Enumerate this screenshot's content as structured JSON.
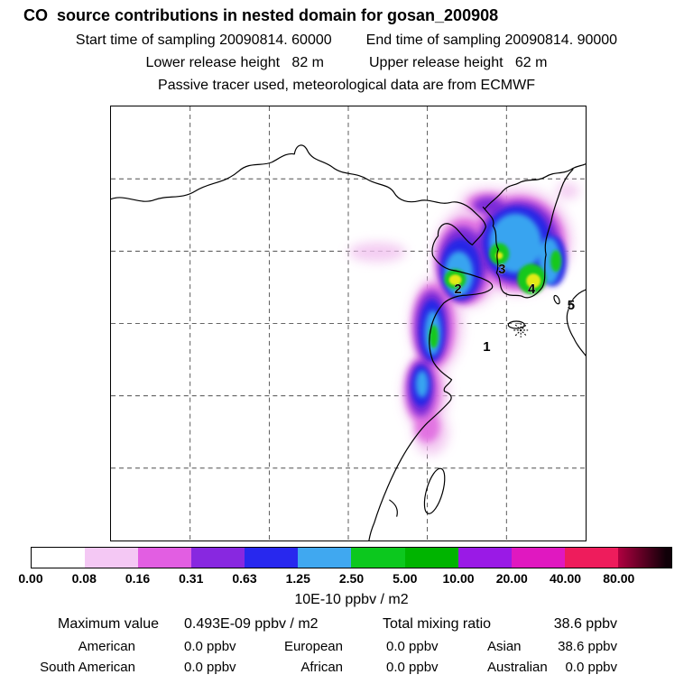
{
  "header": {
    "title": "CO  source contributions in nested domain for gosan_200908",
    "start_time": "Start time of sampling 20090814. 60000",
    "end_time": "End time of sampling 20090814. 90000",
    "lower_release": "Lower release height   82 m",
    "upper_release": "Upper release height   62 m",
    "tracer_line": "Passive tracer used, meteorological data are from ECMWF"
  },
  "map": {
    "marker_icon": "asterisk-station-marker",
    "sites": [
      {
        "label": "1"
      },
      {
        "label": "2"
      },
      {
        "label": "3"
      },
      {
        "label": "4"
      },
      {
        "label": "5"
      }
    ]
  },
  "chart_data": {
    "type": "heatmap",
    "title": "CO source contributions in nested domain for gosan_200908",
    "subtitle": "Passive tracer used, meteorological data are from ECMWF",
    "units": "10E-10 ppbv / m2",
    "colorbar": {
      "levels": [
        0.0,
        0.08,
        0.16,
        0.31,
        0.63,
        1.25,
        2.5,
        5.0,
        10.0,
        20.0,
        40.0,
        80.0
      ],
      "labels": [
        "0.00",
        "0.08",
        "0.16",
        "0.31",
        "0.63",
        "1.25",
        "2.50",
        "5.00",
        "10.00",
        "20.00",
        "40.00",
        "80.00"
      ],
      "colors": [
        "#ffffff",
        "#f4c8f4",
        "#e25ee2",
        "#8828e0",
        "#2828ee",
        "#40a8f0",
        "#0cc81e",
        "#00b400",
        "#9a1ae6",
        "#e018c0",
        "#ee1c5c",
        "#b00040"
      ],
      "legend_position": "bottom"
    },
    "map_site_labels": [
      "1",
      "2",
      "3",
      "4",
      "5"
    ],
    "max_value": "0.493E-09 ppbv / m2",
    "total_mixing_ratio_ppbv": 38.6,
    "contributions": [
      {
        "region": "American",
        "value_ppbv": 0.0
      },
      {
        "region": "European",
        "value_ppbv": 0.0
      },
      {
        "region": "Asian",
        "value_ppbv": 38.6
      },
      {
        "region": "South American",
        "value_ppbv": 0.0
      },
      {
        "region": "African",
        "value_ppbv": 0.0
      },
      {
        "region": "Australian",
        "value_ppbv": 0.0
      }
    ]
  },
  "stats": {
    "max_label": "Maximum value",
    "max_value": "0.493E-09 ppbv / m2",
    "total_label": "Total mixing ratio",
    "total_value": "38.6 ppbv",
    "rows": [
      [
        {
          "label": "American",
          "value": "0.0 ppbv"
        },
        {
          "label": "European",
          "value": "0.0 ppbv"
        },
        {
          "label": "Asian",
          "value": "38.6 ppbv"
        }
      ],
      [
        {
          "label": "South American",
          "value": "0.0 ppbv"
        },
        {
          "label": "African",
          "value": "0.0 ppbv"
        },
        {
          "label": "Australian",
          "value": "0.0 ppbv"
        }
      ]
    ]
  }
}
